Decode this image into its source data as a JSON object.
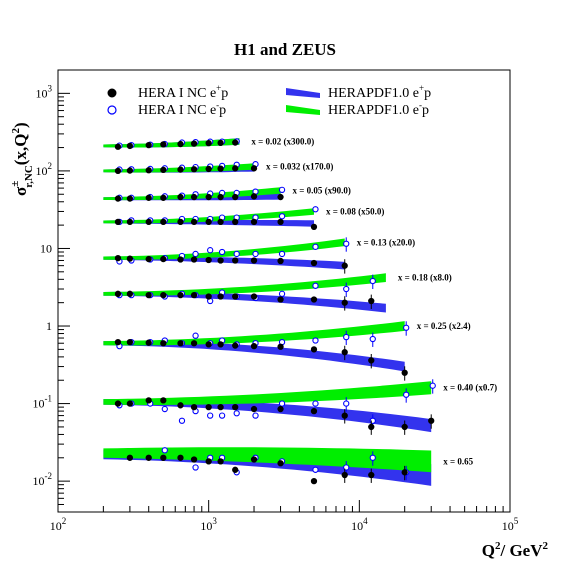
{
  "chart_data": {
    "type": "scatter",
    "title": "H1 and ZEUS",
    "xlabel_main": "Q",
    "xlabel_sup": "2",
    "xlabel_rest": "/ GeV",
    "xlabel_sup2": "2",
    "ylabel_main": "σ",
    "ylabel_sup": "±",
    "ylabel_sub": "r,NC",
    "ylabel_rest": "(x,Q",
    "ylabel_sup2": "2",
    "ylabel_end": ")",
    "x_scale": "log",
    "y_scale": "log",
    "xlim": [
      100,
      100000
    ],
    "ylim": [
      0.004,
      2000
    ],
    "xticks": [
      {
        "base": "10",
        "exp": "2",
        "value": 100
      },
      {
        "base": "10",
        "exp": "3",
        "value": 1000
      },
      {
        "base": "10",
        "exp": "4",
        "value": 10000
      },
      {
        "base": "10",
        "exp": "5",
        "value": 100000
      }
    ],
    "yticks": [
      {
        "base": "10",
        "exp": "-2",
        "value": 0.01
      },
      {
        "base": "10",
        "exp": "-1",
        "value": 0.1
      },
      {
        "base": "1",
        "exp": "",
        "value": 1
      },
      {
        "base": "10",
        "exp": "",
        "value": 10
      },
      {
        "base": "10",
        "exp": "2",
        "value": 100
      },
      {
        "base": "10",
        "exp": "3",
        "value": 1000
      }
    ],
    "legend": [
      {
        "text": "HERA I NC e",
        "sup": "+",
        "rest": "p",
        "marker": "filled-circle",
        "color": "#000000"
      },
      {
        "text": "HERA I NC e",
        "sup": "-",
        "rest": "p",
        "marker": "open-circle",
        "color": "#0000ff"
      },
      {
        "text": "HERAPDF1.0   e",
        "sup": "+",
        "rest": "p",
        "marker": "band",
        "color": "#3333ee"
      },
      {
        "text": "HERAPDF1.0   e",
        "sup": "-",
        "rest": "p",
        "marker": "band",
        "color": "#00ee00"
      }
    ],
    "colors": {
      "ep_plus_data": "#000000",
      "ep_minus_data": "#0000ff",
      "fit_plus": "#3333ee",
      "fit_minus": "#00ee00"
    },
    "series": [
      {
        "label": "x = 0.02   (x300.0)",
        "band_q2": [
          200,
          1600
        ],
        "fit_plus": [
          210,
          240
        ],
        "fit_minus": [
          210,
          240
        ],
        "fit_width": 0.03,
        "plus": [
          [
            250,
            205
          ],
          [
            300,
            210
          ],
          [
            400,
            215
          ],
          [
            500,
            220
          ],
          [
            650,
            222
          ],
          [
            800,
            225
          ],
          [
            1000,
            228
          ],
          [
            1200,
            230
          ],
          [
            1500,
            232
          ]
        ],
        "minus": [
          [
            250,
            212
          ],
          [
            300,
            215
          ],
          [
            400,
            218
          ],
          [
            500,
            222
          ],
          [
            650,
            232
          ],
          [
            800,
            235
          ],
          [
            1000,
            238
          ],
          [
            1200,
            238
          ],
          [
            1500,
            240
          ]
        ]
      },
      {
        "label": "x = 0.032   (x170.0)",
        "band_q2": [
          200,
          2000
        ],
        "fit_plus": [
          100,
          108
        ],
        "fit_minus": [
          100,
          114
        ],
        "fit_width": 0.03,
        "plus": [
          [
            250,
            100
          ],
          [
            300,
            101
          ],
          [
            400,
            102
          ],
          [
            500,
            103
          ],
          [
            650,
            104
          ],
          [
            800,
            105
          ],
          [
            1000,
            106
          ],
          [
            1200,
            107
          ],
          [
            1500,
            108
          ],
          [
            2000,
            108
          ]
        ],
        "minus": [
          [
            250,
            104
          ],
          [
            300,
            105
          ],
          [
            400,
            106
          ],
          [
            500,
            108
          ],
          [
            650,
            110
          ],
          [
            800,
            112
          ],
          [
            1000,
            114
          ],
          [
            1200,
            116
          ],
          [
            1500,
            120
          ],
          [
            2000,
            122
          ]
        ]
      },
      {
        "label": "x = 0.05   (x90.0)",
        "band_q2": [
          200,
          3000
        ],
        "fit_plus": [
          44,
          47
        ],
        "fit_minus": [
          44,
          56
        ],
        "fit_width": 0.03,
        "plus": [
          [
            250,
            44
          ],
          [
            300,
            44
          ],
          [
            400,
            45
          ],
          [
            500,
            45
          ],
          [
            650,
            46
          ],
          [
            800,
            46
          ],
          [
            1000,
            46
          ],
          [
            1200,
            46
          ],
          [
            1500,
            46
          ],
          [
            2000,
            47
          ],
          [
            3000,
            46
          ]
        ],
        "minus": [
          [
            250,
            45
          ],
          [
            300,
            45
          ],
          [
            400,
            46
          ],
          [
            500,
            47
          ],
          [
            650,
            48
          ],
          [
            800,
            50
          ],
          [
            1000,
            51
          ],
          [
            1200,
            52
          ],
          [
            1500,
            52
          ],
          [
            2000,
            54
          ],
          [
            3000,
            57
          ]
        ]
      },
      {
        "label": "x = 0.08   (x50.0)",
        "band_q2": [
          200,
          5000
        ],
        "fit_plus": [
          22,
          21
        ],
        "fit_minus": [
          22,
          30
        ],
        "fit_width": 0.03,
        "plus": [
          [
            250,
            22
          ],
          [
            300,
            22
          ],
          [
            400,
            22
          ],
          [
            500,
            22
          ],
          [
            650,
            22
          ],
          [
            800,
            22
          ],
          [
            1000,
            22
          ],
          [
            1200,
            22
          ],
          [
            1500,
            22
          ],
          [
            2000,
            22
          ],
          [
            3000,
            22
          ],
          [
            5000,
            19
          ]
        ],
        "minus": [
          [
            250,
            22
          ],
          [
            300,
            23
          ],
          [
            400,
            23
          ],
          [
            500,
            23
          ],
          [
            650,
            24
          ],
          [
            800,
            24
          ],
          [
            1000,
            24
          ],
          [
            1200,
            25
          ],
          [
            1500,
            25
          ],
          [
            2000,
            25
          ],
          [
            3000,
            26
          ],
          [
            5000,
            32
          ]
        ]
      },
      {
        "label": "x = 0.13   (x20.0)",
        "band_q2": [
          200,
          8000
        ],
        "fit_plus": [
          7.5,
          6.0
        ],
        "fit_minus": [
          7.5,
          12.0
        ],
        "fit_width": 0.035,
        "plus": [
          [
            250,
            7.5
          ],
          [
            300,
            7.4
          ],
          [
            400,
            7.3
          ],
          [
            500,
            7.3
          ],
          [
            650,
            7.2
          ],
          [
            800,
            7.2
          ],
          [
            1000,
            7.1
          ],
          [
            1200,
            7.0
          ],
          [
            1500,
            7.0
          ],
          [
            2000,
            7.0
          ],
          [
            3000,
            6.9
          ],
          [
            5000,
            6.5
          ],
          [
            8000,
            6.0
          ]
        ],
        "minus": [
          [
            250,
            6.8
          ],
          [
            300,
            7.0
          ],
          [
            400,
            7.2
          ],
          [
            500,
            7.5
          ],
          [
            650,
            8.0
          ],
          [
            800,
            8.5
          ],
          [
            1000,
            9.5
          ],
          [
            1200,
            9.0
          ],
          [
            1500,
            8.5
          ],
          [
            2000,
            8.5
          ],
          [
            3000,
            8.5
          ],
          [
            5000,
            10.5
          ],
          [
            8000,
            11.5
          ]
        ]
      },
      {
        "label": "x = 0.18   (x8.0)",
        "band_q2": [
          200,
          15000
        ],
        "fit_plus": [
          2.6,
          1.7
        ],
        "fit_minus": [
          2.6,
          4.2
        ],
        "fit_width": 0.04,
        "plus": [
          [
            250,
            2.6
          ],
          [
            300,
            2.6
          ],
          [
            400,
            2.5
          ],
          [
            500,
            2.5
          ],
          [
            650,
            2.5
          ],
          [
            800,
            2.5
          ],
          [
            1000,
            2.4
          ],
          [
            1200,
            2.4
          ],
          [
            1500,
            2.4
          ],
          [
            2000,
            2.4
          ],
          [
            3000,
            2.2
          ],
          [
            5000,
            2.2
          ],
          [
            8000,
            2.0
          ],
          [
            12000,
            2.1
          ]
        ],
        "minus": [
          [
            250,
            2.5
          ],
          [
            300,
            2.5
          ],
          [
            400,
            2.5
          ],
          [
            500,
            2.4
          ],
          [
            650,
            2.6
          ],
          [
            800,
            2.5
          ],
          [
            1000,
            2.1
          ],
          [
            1200,
            2.7
          ],
          [
            1500,
            2.4
          ],
          [
            2000,
            2.3
          ],
          [
            3000,
            2.6
          ],
          [
            5000,
            3.3
          ],
          [
            8000,
            3.0
          ],
          [
            12000,
            3.8
          ]
        ]
      },
      {
        "label": "x = 0.25   (x2.4)",
        "band_q2": [
          200,
          20000
        ],
        "fit_plus": [
          0.6,
          0.3
        ],
        "fit_minus": [
          0.6,
          1.0
        ],
        "fit_width": 0.045,
        "plus": [
          [
            250,
            0.62
          ],
          [
            300,
            0.62
          ],
          [
            400,
            0.61
          ],
          [
            500,
            0.6
          ],
          [
            650,
            0.6
          ],
          [
            800,
            0.6
          ],
          [
            1000,
            0.58
          ],
          [
            1200,
            0.58
          ],
          [
            1500,
            0.56
          ],
          [
            2000,
            0.55
          ],
          [
            3000,
            0.54
          ],
          [
            5000,
            0.5
          ],
          [
            8000,
            0.46
          ],
          [
            12000,
            0.36
          ],
          [
            20000,
            0.25
          ]
        ],
        "minus": [
          [
            250,
            0.55
          ],
          [
            300,
            0.62
          ],
          [
            400,
            0.62
          ],
          [
            500,
            0.65
          ],
          [
            650,
            0.6
          ],
          [
            800,
            0.75
          ],
          [
            1000,
            0.6
          ],
          [
            1200,
            0.65
          ],
          [
            1500,
            0.58
          ],
          [
            2000,
            0.6
          ],
          [
            3000,
            0.62
          ],
          [
            5000,
            0.65
          ],
          [
            8000,
            0.72
          ],
          [
            12000,
            0.68
          ],
          [
            20000,
            0.95
          ]
        ]
      },
      {
        "label": "x = 0.40   (x0.7)",
        "band_q2": [
          200,
          30000
        ],
        "fit_plus": [
          0.105,
          0.052
        ],
        "fit_minus": [
          0.105,
          0.16
        ],
        "fit_width": 0.06,
        "plus": [
          [
            250,
            0.1
          ],
          [
            300,
            0.1
          ],
          [
            400,
            0.11
          ],
          [
            500,
            0.11
          ],
          [
            650,
            0.095
          ],
          [
            800,
            0.09
          ],
          [
            1000,
            0.09
          ],
          [
            1200,
            0.09
          ],
          [
            1500,
            0.09
          ],
          [
            2000,
            0.085
          ],
          [
            3000,
            0.085
          ],
          [
            5000,
            0.08
          ],
          [
            8000,
            0.07
          ],
          [
            12000,
            0.05
          ],
          [
            20000,
            0.05
          ],
          [
            30000,
            0.06
          ]
        ],
        "minus": [
          [
            250,
            0.095
          ],
          [
            300,
            0.1
          ],
          [
            400,
            0.1
          ],
          [
            500,
            0.085
          ],
          [
            650,
            0.06
          ],
          [
            800,
            0.08
          ],
          [
            1000,
            0.07
          ],
          [
            1200,
            0.07
          ],
          [
            1500,
            0.075
          ],
          [
            2000,
            0.07
          ],
          [
            3000,
            0.1
          ],
          [
            5000,
            0.1
          ],
          [
            8000,
            0.1
          ],
          [
            12000,
            0.06
          ],
          [
            20000,
            0.13
          ],
          [
            30000,
            0.17
          ]
        ]
      },
      {
        "label": "x = 0.65",
        "band_q2": [
          200,
          30000
        ],
        "fit_plus": [
          0.022,
          0.012
        ],
        "fit_minus": [
          0.023,
          0.018
        ],
        "fit_width": 0.1,
        "plus": [
          [
            300,
            0.02
          ],
          [
            400,
            0.02
          ],
          [
            500,
            0.02
          ],
          [
            650,
            0.02
          ],
          [
            800,
            0.019
          ],
          [
            1000,
            0.018
          ],
          [
            1200,
            0.018
          ],
          [
            1500,
            0.014
          ],
          [
            2000,
            0.019
          ],
          [
            3000,
            0.017
          ],
          [
            5000,
            0.01
          ],
          [
            8000,
            0.012
          ],
          [
            12000,
            0.012
          ],
          [
            20000,
            0.013
          ]
        ],
        "minus": [
          [
            500,
            0.025
          ],
          [
            800,
            0.015
          ],
          [
            1000,
            0.02
          ],
          [
            1200,
            0.02
          ],
          [
            1500,
            0.013
          ],
          [
            2000,
            0.02
          ],
          [
            3000,
            0.018
          ],
          [
            5000,
            0.014
          ],
          [
            8000,
            0.015
          ],
          [
            12000,
            0.02
          ],
          [
            20000,
            0.013
          ]
        ]
      }
    ]
  }
}
